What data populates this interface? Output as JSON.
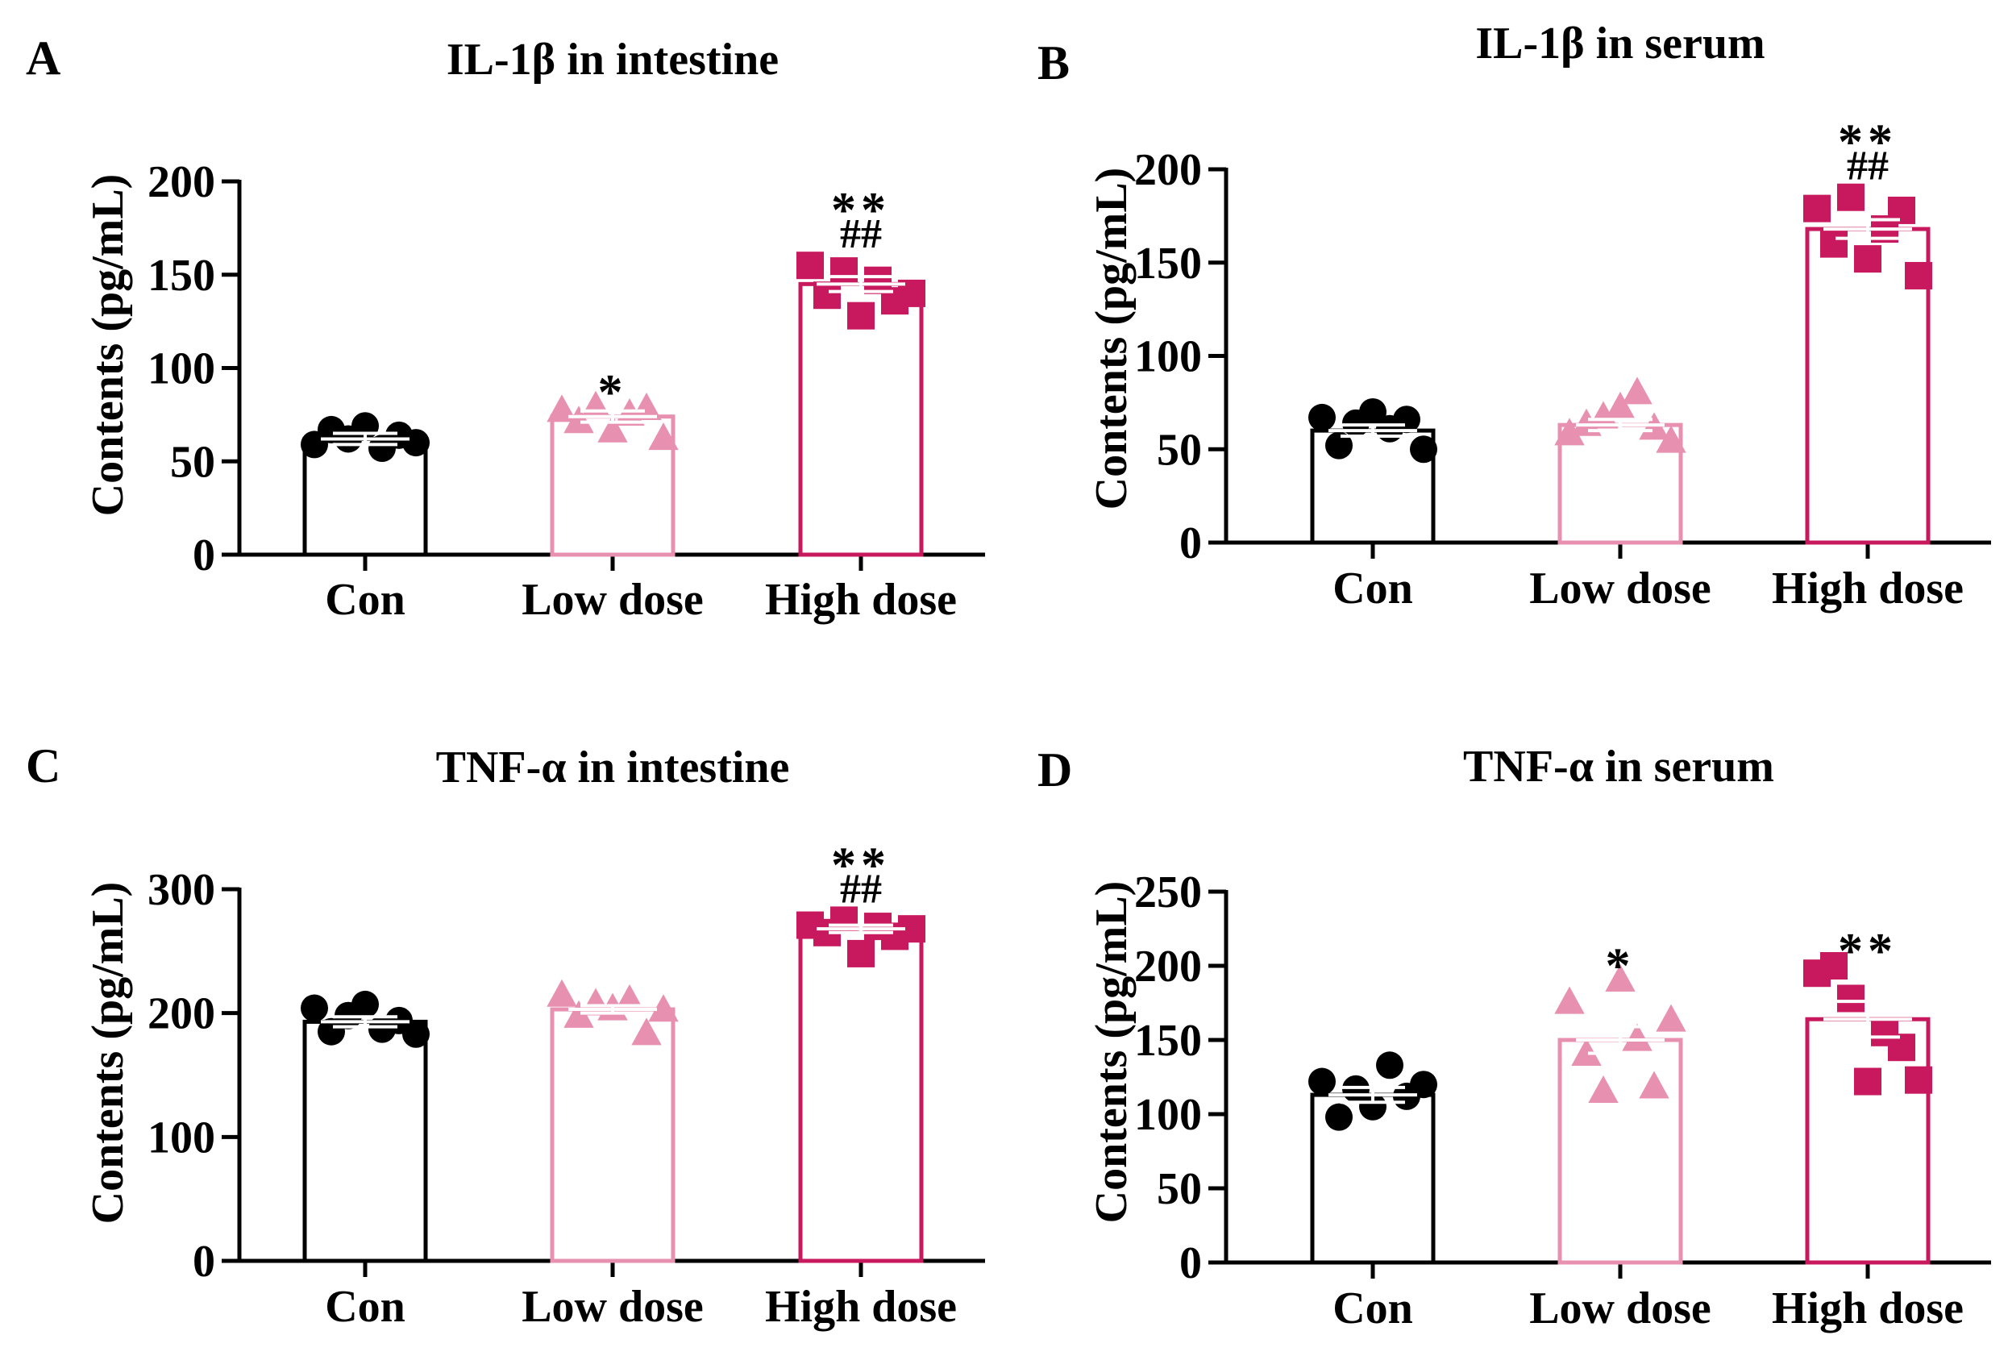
{
  "colors": {
    "con": "#000000",
    "low": "#E890B0",
    "high": "#C8185E"
  },
  "chart_data": [
    {
      "type": "bar",
      "panel": "A",
      "title": "IL-1β in intestine",
      "ylabel": "Contents (pg/mL)",
      "ylim": [
        0,
        200
      ],
      "yticks": [
        0,
        50,
        100,
        150,
        200
      ],
      "categories": [
        "Con",
        "Low dose",
        "High dose"
      ],
      "values": [
        62,
        74,
        145
      ],
      "errors": [
        3,
        3,
        4
      ],
      "points": [
        [
          59,
          67,
          62,
          69,
          57,
          64,
          60
        ],
        [
          77,
          71,
          79,
          66,
          75,
          78,
          62
        ],
        [
          155,
          139,
          152,
          128,
          147,
          136,
          140
        ]
      ],
      "markers": [
        "circle",
        "triangle",
        "square"
      ],
      "sig_top": [
        "",
        "*",
        "**"
      ],
      "sig_bottom": [
        "",
        "",
        "##"
      ]
    },
    {
      "type": "bar",
      "panel": "B",
      "title": "IL-1β in serum",
      "ylabel": "Contents (pg/mL)",
      "ylim": [
        0,
        200
      ],
      "yticks": [
        0,
        50,
        100,
        150,
        200
      ],
      "categories": [
        "Con",
        "Low dose",
        "High dose"
      ],
      "values": [
        60,
        63,
        168
      ],
      "errors": [
        3,
        3,
        5
      ],
      "points": [
        [
          67,
          52,
          64,
          70,
          61,
          66,
          50
        ],
        [
          58,
          63,
          67,
          72,
          80,
          61,
          54
        ],
        [
          179,
          160,
          185,
          152,
          168,
          178,
          143
        ]
      ],
      "markers": [
        "circle",
        "triangle",
        "square"
      ],
      "sig_top": [
        "",
        "",
        "**"
      ],
      "sig_bottom": [
        "",
        "",
        "##"
      ]
    },
    {
      "type": "bar",
      "panel": "C",
      "title": "TNF-α in intestine",
      "ylabel": "Contents (pg/mL)",
      "ylim": [
        0,
        300
      ],
      "yticks": [
        0,
        100,
        200,
        300
      ],
      "categories": [
        "Con",
        "Low dose",
        "High dose"
      ],
      "values": [
        193,
        203,
        268
      ],
      "errors": [
        4,
        3,
        3
      ],
      "points": [
        [
          204,
          185,
          198,
          207,
          187,
          194,
          183
        ],
        [
          214,
          197,
          207,
          203,
          210,
          183,
          202
        ],
        [
          271,
          265,
          275,
          248,
          270,
          262,
          268
        ]
      ],
      "markers": [
        "circle",
        "triangle",
        "square"
      ],
      "sig_top": [
        "",
        "",
        "**"
      ],
      "sig_bottom": [
        "",
        "",
        "##"
      ]
    },
    {
      "type": "bar",
      "panel": "D",
      "title": "TNF-α in serum",
      "ylabel": "Contents (pg/mL)",
      "ylim": [
        0,
        250
      ],
      "yticks": [
        0,
        50,
        100,
        150,
        200,
        250
      ],
      "categories": [
        "Con",
        "Low dose",
        "High dose"
      ],
      "values": [
        113,
        150,
        164
      ],
      "errors": [
        5,
        9,
        12
      ],
      "points": [
        [
          122,
          98,
          117,
          105,
          133,
          112,
          120
        ],
        [
          175,
          140,
          115,
          190,
          150,
          118,
          163
        ],
        [
          195,
          200,
          178,
          122,
          155,
          145,
          123
        ]
      ],
      "markers": [
        "circle",
        "triangle",
        "square"
      ],
      "sig_top": [
        "",
        "*",
        "**"
      ],
      "sig_bottom": [
        "",
        "",
        ""
      ]
    }
  ]
}
